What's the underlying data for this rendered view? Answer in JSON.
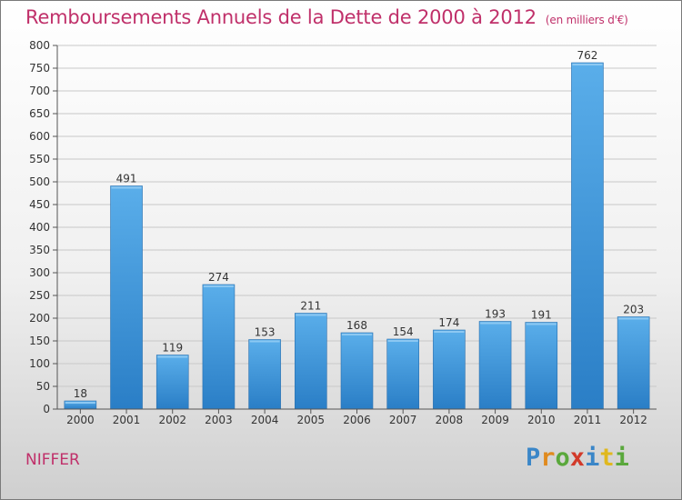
{
  "chart_data": {
    "type": "bar",
    "title": "Remboursements Annuels de la Dette de 2000 à 2012",
    "unit_label": "(en milliers d'€)",
    "categories": [
      "2000",
      "2001",
      "2002",
      "2003",
      "2004",
      "2005",
      "2006",
      "2007",
      "2008",
      "2009",
      "2010",
      "2011",
      "2012"
    ],
    "values": [
      18,
      491,
      119,
      274,
      153,
      211,
      168,
      154,
      174,
      193,
      191,
      762,
      203
    ],
    "data_labels": [
      "18",
      "491",
      "119",
      "274",
      "153",
      "211",
      "168",
      "154",
      "174",
      "193",
      "191",
      "762",
      "203"
    ],
    "ylim": [
      0,
      800
    ],
    "yticks": [
      "0",
      "50",
      "100",
      "150",
      "200",
      "250",
      "300",
      "350",
      "400",
      "450",
      "500",
      "550",
      "600",
      "650",
      "700",
      "750",
      "800"
    ],
    "xlabel": "",
    "ylabel": "",
    "grid": true,
    "bar_color": "#3d95dc",
    "title_color": "#c0306a"
  },
  "commune": "NIFFER",
  "logo": {
    "letters": [
      "P",
      "r",
      "o",
      "x",
      "i",
      "t",
      "i"
    ],
    "colors": [
      "#3a86c8",
      "#e08a1e",
      "#5aa83c",
      "#d23a2a",
      "#3a86c8",
      "#e0b81e",
      "#5aa83c"
    ]
  }
}
